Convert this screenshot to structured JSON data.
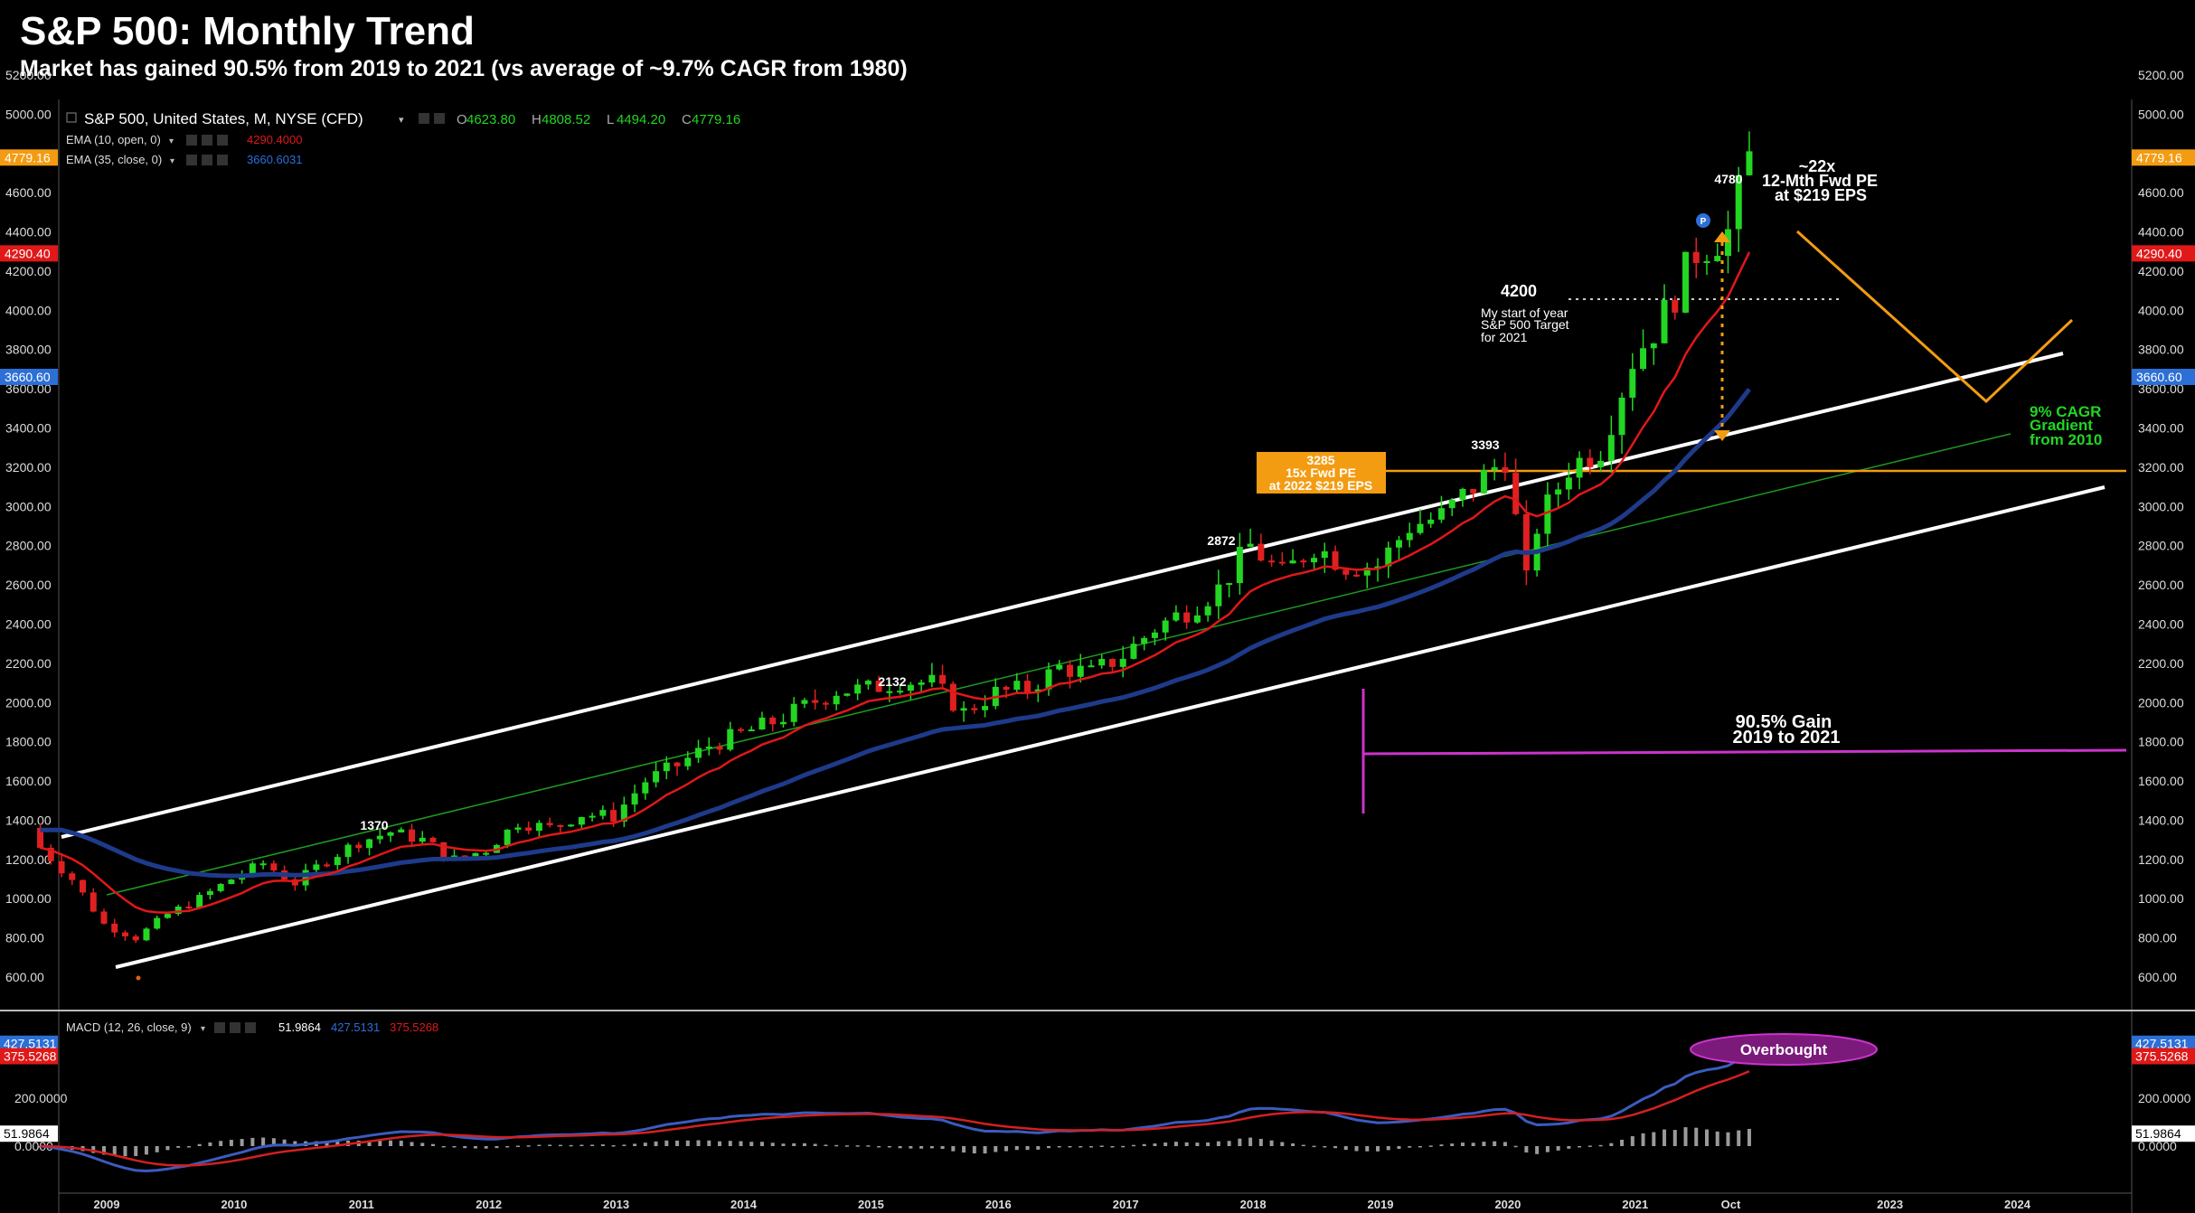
{
  "header": {
    "title": "S&P 500: Monthly Trend",
    "subtitle": "Market has gained 90.5% from 2019 to 2021 (vs average of ~9.7% CAGR from 1980)"
  },
  "legend": {
    "symbol": "S&P 500, United States, M, NYSE (CFD)",
    "ohlc": [
      {
        "k": "O",
        "v": "4623.80"
      },
      {
        "k": "H",
        "v": "4808.52"
      },
      {
        "k": "L",
        "v": "4494.20"
      },
      {
        "k": "C",
        "v": "4779.16"
      }
    ],
    "ema10_label": "EMA (10, open, 0)",
    "ema10_value": "4290.4000",
    "ema35_label": "EMA (35, close, 0)",
    "ema35_value": "3660.6031",
    "macd_label": "MACD (12, 26, close, 9)",
    "macd_hist": "51.9864",
    "macd_line": "427.5131",
    "macd_signal": "375.5268"
  },
  "colors": {
    "up": "#22d622",
    "down": "#e02020",
    "ema10": "#e01818",
    "ema35": "#1e3a8a",
    "channel": "#ffffff",
    "gradient": "#1f9a1f",
    "orange": "#f39c12",
    "magenta": "#cc33cc",
    "macd": "#3b5bbf",
    "signal": "#d42020",
    "hist": "#9a9a9a",
    "label_close": "#f39c12",
    "label_ema10": "#e01818",
    "label_ema35": "#2c6fd6",
    "overbought": "#7b1a7b"
  },
  "price_markers": [
    {
      "value": 4779.16,
      "text": "4779.16",
      "color": "#f39c12"
    },
    {
      "value": 4290.4,
      "text": "4290.40",
      "color": "#e01818"
    },
    {
      "value": 3660.6,
      "text": "3660.60",
      "color": "#2c6fd6"
    }
  ],
  "macd_markers": [
    {
      "value": 427.5131,
      "text": "427.5131",
      "color": "#2c6fd6",
      "fg": "#fff"
    },
    {
      "value": 375.5268,
      "text": "375.5268",
      "color": "#e01818",
      "fg": "#fff"
    },
    {
      "value": 51.9864,
      "text": "51.9864",
      "color": "#ffffff",
      "fg": "#000"
    }
  ],
  "annotations": {
    "a1370": "1370",
    "a2132": "2132",
    "a2872": "2872",
    "a3393": "3393",
    "a4780": "4780",
    "pe22_1": "~22x",
    "pe22_2": "12-Mth Fwd PE",
    "pe22_3": "at $219 EPS",
    "t4200": "4200",
    "target_1": "My start of year",
    "target_2": "S&P 500 Target",
    "target_3": "for 2021",
    "box_1": "3285",
    "box_2": "15x Fwd PE",
    "box_3": "at 2022 $219 EPS",
    "cagr_1": "9% CAGR",
    "cagr_2": "Gradient",
    "cagr_3": "from 2010",
    "gain_1": "90.5% Gain",
    "gain_2": "2019 to 2021",
    "overbought": "Overbought",
    "p_marker": "P"
  },
  "chart_data": [
    {
      "type": "candlestick",
      "title": "S&P 500: Monthly Trend",
      "subtitle": "Market has gained 90.5% from 2019 to 2021 (vs average of ~9.7% CAGR from 1980)",
      "x_ticks": [
        "2009",
        "2010",
        "2011",
        "2012",
        "2013",
        "2014",
        "2015",
        "2016",
        "2017",
        "2018",
        "2019",
        "2020",
        "2021",
        "Oct",
        "2023",
        "2024"
      ],
      "y_ticks": [
        600,
        800,
        1000,
        1200,
        1400,
        1600,
        1800,
        2000,
        2200,
        2400,
        2600,
        2800,
        3000,
        3200,
        3400,
        3600,
        3800,
        4000,
        4200,
        4400,
        4600,
        4800,
        5000,
        5200
      ],
      "ylim": [
        480,
        5350
      ],
      "series": [
        {
          "name": "S&P 500, United States, M, NYSE (CFD)",
          "comment": "approximate monthly closes; year + fractional month",
          "x": [
            2008.5,
            2008.75,
            2009.0,
            2009.25,
            2009.5,
            2009.75,
            2010.0,
            2010.25,
            2010.5,
            2010.75,
            2011.0,
            2011.25,
            2011.5,
            2011.75,
            2012.0,
            2012.25,
            2012.5,
            2012.75,
            2013.0,
            2013.25,
            2013.5,
            2013.75,
            2014.0,
            2014.25,
            2014.5,
            2014.75,
            2015.0,
            2015.25,
            2015.5,
            2015.75,
            2016.0,
            2016.25,
            2016.5,
            2016.75,
            2017.0,
            2017.25,
            2017.5,
            2017.75,
            2018.0,
            2018.25,
            2018.5,
            2018.75,
            2019.0,
            2019.25,
            2019.5,
            2019.75,
            2020.0,
            2020.17,
            2020.25,
            2020.5,
            2020.75,
            2021.0,
            2021.25,
            2021.5,
            2021.75,
            2021.92
          ],
          "values": [
            1260,
            1100,
            870,
            800,
            920,
            1000,
            1100,
            1180,
            1080,
            1200,
            1290,
            1340,
            1300,
            1200,
            1250,
            1390,
            1360,
            1430,
            1420,
            1600,
            1680,
            1780,
            1840,
            1900,
            1980,
            2060,
            2070,
            2110,
            2100,
            1950,
            2050,
            2070,
            2180,
            2150,
            2240,
            2380,
            2470,
            2580,
            2800,
            2650,
            2800,
            2700,
            2700,
            2900,
            2950,
            3100,
            3250,
            2600,
            2900,
            3200,
            3300,
            3750,
            3980,
            4300,
            4400,
            4779
          ]
        },
        {
          "name": "EMA (10, open, 0)",
          "last": 4290.4
        },
        {
          "name": "EMA (35, close, 0)",
          "last": 3660.6031
        }
      ],
      "annotations": [
        {
          "x": 2011.0,
          "y": 1370,
          "text": "1370"
        },
        {
          "x": 2015.1,
          "y": 2132,
          "text": "2132"
        },
        {
          "x": 2017.9,
          "y": 2872,
          "text": "2872"
        },
        {
          "x": 2019.9,
          "y": 3393,
          "text": "3393"
        },
        {
          "x": 2021.9,
          "y": 4780,
          "text": "4780"
        },
        {
          "y": 4200,
          "text": "4200"
        },
        {
          "y": 3285,
          "text": "3285"
        }
      ]
    },
    {
      "type": "line",
      "title": "MACD (12, 26, close, 9)",
      "series": [
        {
          "name": "MACD",
          "last": 427.5131
        },
        {
          "name": "Signal",
          "last": 375.5268
        },
        {
          "name": "Histogram",
          "last": 51.9864
        }
      ],
      "y_ticks": [
        0,
        200
      ]
    }
  ]
}
